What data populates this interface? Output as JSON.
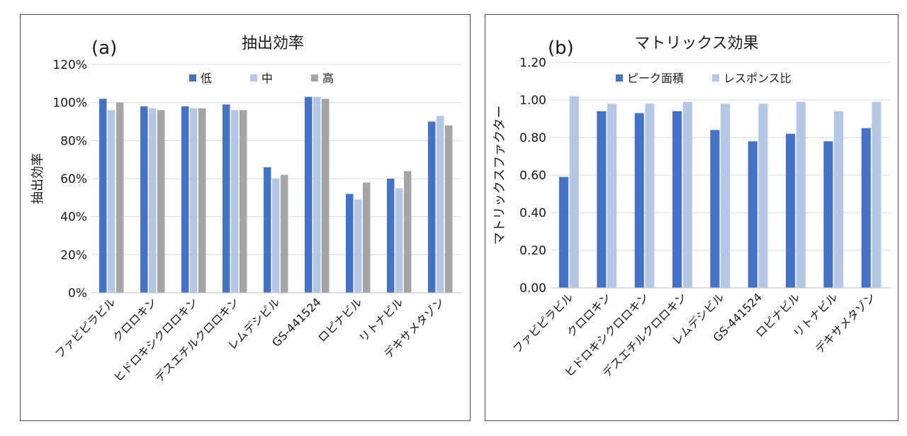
{
  "chart_data": [
    {
      "type": "bar",
      "panel_label": "(a)",
      "title": "抽出効率",
      "ylabel": "抽出効率",
      "xlabel": "",
      "ylim": [
        0,
        1.2
      ],
      "ytick_labels": [
        "0%",
        "20%",
        "40%",
        "60%",
        "80%",
        "100%",
        "120%"
      ],
      "categories": [
        "ファビピラビル",
        "クロロキン",
        "ヒドロキシクロロキン",
        "デスエチルクロロキン",
        "レムデシビル",
        "GS-441524",
        "ロピナビル",
        "リトナビル",
        "デキサメタゾン"
      ],
      "series": [
        {
          "name": "低",
          "color": "#4472c4",
          "values": [
            1.02,
            0.98,
            0.98,
            0.99,
            0.66,
            1.03,
            0.52,
            0.6,
            0.9
          ]
        },
        {
          "name": "中",
          "color": "#b4c7e7",
          "values": [
            0.96,
            0.97,
            0.97,
            0.96,
            0.6,
            1.03,
            0.49,
            0.55,
            0.93
          ]
        },
        {
          "name": "高",
          "color": "#a5a5a5",
          "values": [
            1.0,
            0.96,
            0.97,
            0.96,
            0.62,
            1.02,
            0.58,
            0.64,
            0.88
          ]
        }
      ],
      "grid": true,
      "legend_position": "top"
    },
    {
      "type": "bar",
      "panel_label": "(b)",
      "title": "マトリックス効果",
      "ylabel": "マトリックスファクター",
      "xlabel": "",
      "ylim": [
        0,
        1.2
      ],
      "ytick_labels": [
        "0.00",
        "0.20",
        "0.40",
        "0.60",
        "0.80",
        "1.00",
        "1.20"
      ],
      "categories": [
        "ファビピラビル",
        "クロロキン",
        "ヒドロキシクロロキン",
        "デスエチルクロロキン",
        "レムデシビル",
        "GS-441524",
        "ロピナビル",
        "リトナビル",
        "デキサメタゾン"
      ],
      "series": [
        {
          "name": "ピーク面積",
          "color": "#4472c4",
          "values": [
            0.59,
            0.94,
            0.93,
            0.94,
            0.84,
            0.78,
            0.82,
            0.78,
            0.85
          ]
        },
        {
          "name": "レスポンス比",
          "color": "#b4c7e7",
          "values": [
            1.02,
            0.98,
            0.98,
            0.99,
            0.98,
            0.98,
            0.99,
            0.94,
            0.99
          ]
        }
      ],
      "grid": true,
      "legend_position": "top"
    }
  ]
}
